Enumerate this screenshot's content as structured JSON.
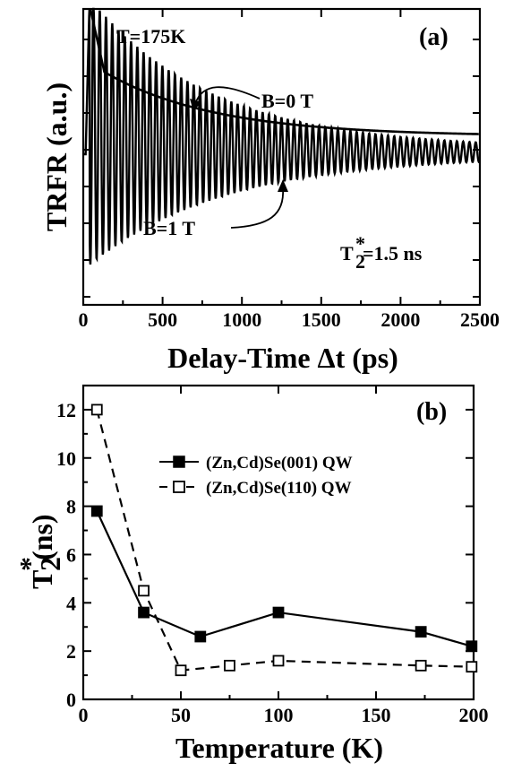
{
  "chart_data": [
    {
      "panel": "(a)",
      "type": "line",
      "xlabel": "Delay-Time Δt (ps)",
      "ylabel": "TRFR (a.u.)",
      "xlim": [
        0,
        2500
      ],
      "xticks": [
        "0",
        "500",
        "1000",
        "1500",
        "2000",
        "2500"
      ],
      "annotations": {
        "temperature": "T=175K",
        "b0": "B=0 T",
        "b1": "B=1 T",
        "t2_main": "T",
        "t2_sub": "2",
        "t2_sup": "*",
        "t2_value": " =1.5 ns"
      },
      "series": [
        {
          "name": "B=0 T",
          "description_values": {
            "T2_star_ns": 1.5
          }
        },
        {
          "name": "B=1 T",
          "oscillation_period_ps": 39.5
        }
      ],
      "grid": false
    },
    {
      "panel": "(b)",
      "type": "line",
      "xlabel": "Temperature (K)",
      "ylabel_main": "T",
      "ylabel_sub": "2",
      "ylabel_sup": "*",
      "ylabel_unit": " (ns)",
      "xlim": [
        0,
        200
      ],
      "ylim": [
        0,
        13
      ],
      "xticks": [
        "0",
        "50",
        "100",
        "150",
        "200"
      ],
      "yticks": [
        "0",
        "2",
        "4",
        "6",
        "8",
        "10",
        "12"
      ],
      "legend_position": "upper-center",
      "series": [
        {
          "name": "(Zn,Cd)Se(001) QW",
          "marker": "filled-square",
          "line": "solid",
          "x": [
            7,
            31,
            60,
            100,
            173,
            199
          ],
          "y": [
            7.8,
            3.6,
            2.6,
            3.6,
            2.8,
            2.2
          ]
        },
        {
          "name": "(Zn,Cd)Se(110) QW",
          "marker": "open-square",
          "line": "dashed",
          "x": [
            7,
            31,
            50,
            75,
            100,
            173,
            199
          ],
          "y": [
            12.0,
            4.5,
            1.2,
            1.4,
            1.6,
            1.4,
            1.35
          ]
        }
      ],
      "grid": false
    }
  ]
}
